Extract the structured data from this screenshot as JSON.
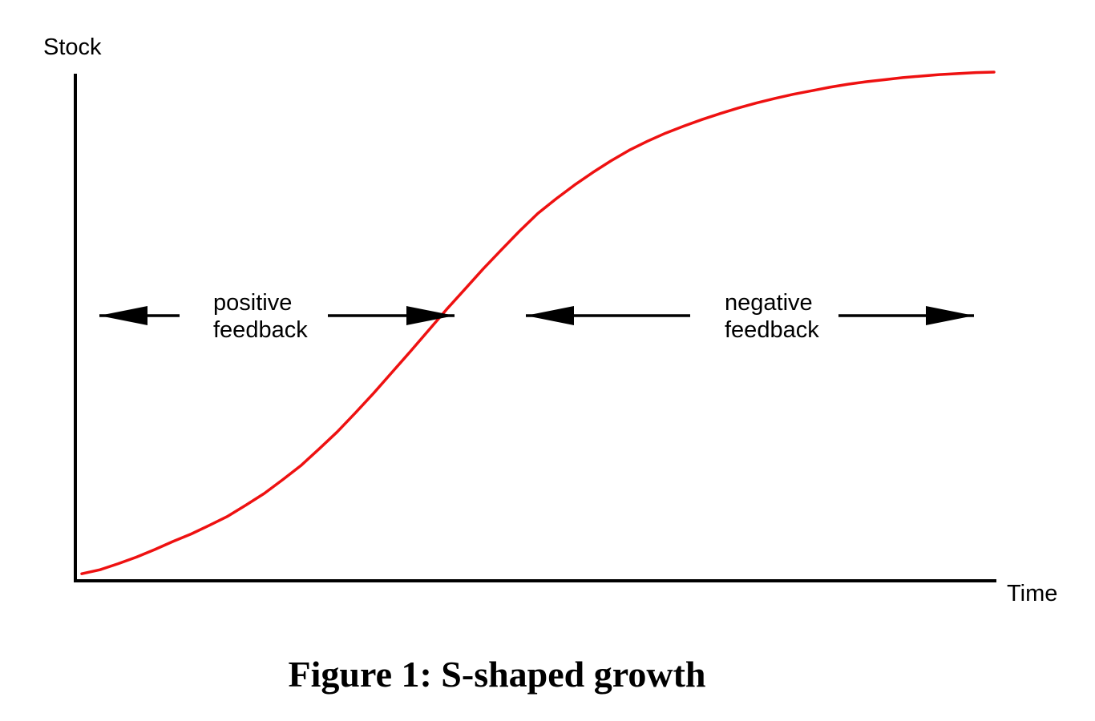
{
  "chart_data": {
    "type": "line",
    "title": "Figure 1: S-shaped growth",
    "xlabel": "Time",
    "ylabel": "Stock",
    "grid": false,
    "xlim": [
      0,
      100
    ],
    "ylim": [
      0,
      100
    ],
    "series": [
      {
        "name": "Stock",
        "color": "#ee1111",
        "x": [
          0,
          2,
          4,
          6,
          8,
          10,
          12,
          14,
          16,
          18,
          20,
          22,
          24,
          26,
          28,
          30,
          32,
          34,
          36,
          38,
          40,
          42,
          44,
          46,
          48,
          50,
          52,
          54,
          56,
          58,
          60,
          62,
          64,
          66,
          68,
          70,
          72,
          74,
          76,
          78,
          80,
          82,
          84,
          86,
          88,
          90,
          92,
          94,
          96,
          98,
          100
        ],
        "y": [
          0.6,
          1.4,
          2.6,
          3.9,
          5.4,
          7.0,
          8.5,
          10.2,
          12.0,
          14.2,
          16.5,
          19.2,
          22.0,
          25.3,
          28.7,
          32.5,
          36.4,
          40.5,
          44.6,
          48.8,
          53.0,
          57.0,
          61.0,
          64.8,
          68.5,
          72.0,
          74.9,
          77.6,
          80.1,
          82.4,
          84.5,
          86.3,
          87.9,
          89.3,
          90.6,
          91.8,
          92.9,
          93.9,
          94.8,
          95.6,
          96.3,
          97.0,
          97.6,
          98.1,
          98.5,
          98.9,
          99.2,
          99.5,
          99.7,
          99.9,
          100.0
        ]
      }
    ],
    "annotations": [
      {
        "name": "positive-feedback",
        "lines": [
          "positive",
          "feedback"
        ]
      },
      {
        "name": "negative-feedback",
        "lines": [
          "negative",
          "feedback"
        ]
      }
    ]
  }
}
